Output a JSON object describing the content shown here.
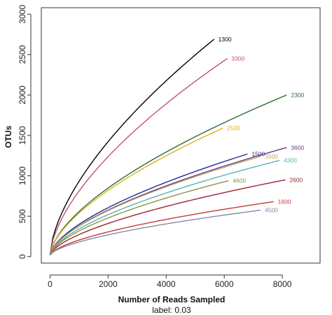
{
  "chart_data": {
    "type": "line",
    "title": "",
    "subtitle": "label: 0.03",
    "xlabel": "Number of Reads Sampled",
    "ylabel": "OTUs",
    "xlim": [
      -300,
      9300
    ],
    "ylim": [
      -80,
      3080
    ],
    "xticks": [
      0,
      2000,
      4000,
      6000,
      8000
    ],
    "xtick_labels": [
      "0",
      "2000",
      "4000",
      "6000",
      "8000"
    ],
    "yticks": [
      0,
      500,
      1000,
      1500,
      2000,
      2500,
      3000
    ],
    "ytick_labels": [
      "0",
      "500",
      "1000",
      "1500",
      "2000",
      "2500",
      "3000"
    ],
    "grid": false,
    "legend": "none",
    "series": [
      {
        "name": "1300",
        "color": "#000000",
        "x_end": 5650,
        "y_end": 2690
      },
      {
        "name": "3300",
        "color": "#c2507a",
        "x_end": 6100,
        "y_end": 2450
      },
      {
        "name": "2300",
        "color": "#2e6b35",
        "x_end": 8150,
        "y_end": 2000
      },
      {
        "name": "2500",
        "color": "#e0b020",
        "x_end": 5950,
        "y_end": 1590
      },
      {
        "name": "3600",
        "color": "#6a3a8a",
        "x_end": 8150,
        "y_end": 1350
      },
      {
        "name": "1500",
        "color": "#2b2b8c",
        "x_end": 6800,
        "y_end": 1270
      },
      {
        "name": "3500",
        "color": "#b9a862",
        "x_end": 7250,
        "y_end": 1240
      },
      {
        "name": "4300",
        "color": "#5ab2b5",
        "x_end": 7900,
        "y_end": 1190
      },
      {
        "name": "2600",
        "color": "#9b2434",
        "x_end": 8100,
        "y_end": 950
      },
      {
        "name": "4600",
        "color": "#8a9446",
        "x_end": 6150,
        "y_end": 940
      },
      {
        "name": "1600",
        "color": "#c43a3a",
        "x_end": 7700,
        "y_end": 680
      },
      {
        "name": "4500",
        "color": "#7e8ea8",
        "x_end": 7250,
        "y_end": 575
      }
    ]
  }
}
